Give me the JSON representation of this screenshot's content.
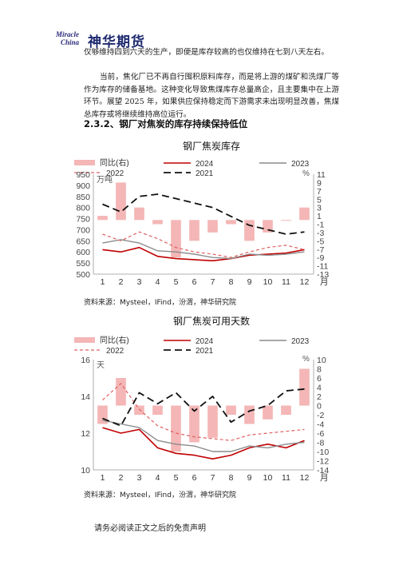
{
  "header": {
    "logo_line1": "Miracle",
    "logo_line2": "China",
    "company": "神华期货"
  },
  "body": {
    "para1": "仅够维持四到六天的生产，即便是库存较高的也仅维持在七到八天左右。",
    "para2": "当前，焦化厂已不再自行囤积原料库存，而是将上游的煤矿和洗煤厂等作为库存的储备基地。这种变化导致焦煤库存总量高企，且主要集中在上游环节。展望 2025 年，如果供应保持稳定而下游需求未出现明显改善，焦煤总库存或将继续维持高位运行。",
    "section_heading": "2.3.2、钢厂对焦炭的库存持续保持低位"
  },
  "charts": [
    {
      "title": "钢厂焦炭库存",
      "source": "资料来源：Mysteel，IFind，汾渭，神华研究院"
    },
    {
      "title": "钢厂焦炭可用天数",
      "source": "资料来源：Mysteel，IFind，汾渭，神华研究院"
    }
  ],
  "footer": {
    "disclaimer": "请务必阅读正文之后的免责声明"
  },
  "colors": {
    "bar": "#f4b6b6",
    "s2024": "#c00000",
    "s2023": "#8c8c8c",
    "s2022": "#e06060",
    "s2021": "#111111"
  },
  "chart_data": [
    {
      "type": "line",
      "title": "钢厂焦炭库存",
      "left_unit": "万吨",
      "right_unit": "%",
      "month_suffix": "月",
      "x": [
        1,
        2,
        3,
        4,
        5,
        6,
        7,
        8,
        9,
        10,
        11,
        12
      ],
      "x_ticks": [
        "1",
        "2",
        "3",
        "4",
        "5",
        "6",
        "7",
        "8",
        "9",
        "10",
        "11",
        "12"
      ],
      "ylim_left": [
        500,
        950
      ],
      "yticks_left": [
        "950",
        "900",
        "850",
        "800",
        "750",
        "700",
        "650",
        "600",
        "550",
        "500"
      ],
      "ylim_right": [
        -13,
        11
      ],
      "yticks_right": [
        "11",
        "9",
        "7",
        "5",
        "3",
        "1",
        "-1",
        "-3",
        "-5",
        "-7",
        "-9",
        "-11",
        "-13"
      ],
      "series": [
        {
          "name": "2024",
          "axis": "left",
          "style": "solid",
          "values": [
            610,
            600,
            620,
            580,
            570,
            565,
            560,
            570,
            585,
            590,
            595,
            610
          ]
        },
        {
          "name": "2023",
          "axis": "left",
          "style": "solid",
          "values": [
            640,
            655,
            640,
            605,
            600,
            590,
            575,
            570,
            590,
            585,
            590,
            600
          ]
        },
        {
          "name": "2022",
          "axis": "left",
          "style": "dashed",
          "values": [
            680,
            650,
            690,
            660,
            620,
            600,
            590,
            575,
            600,
            620,
            630,
            610
          ]
        },
        {
          "name": "2021",
          "axis": "left",
          "style": "longdash",
          "values": [
            815,
            780,
            850,
            860,
            840,
            820,
            800,
            760,
            720,
            700,
            680,
            690
          ]
        }
      ],
      "bar_series": {
        "name": "同比(右)",
        "axis": "right",
        "values": [
          1,
          9,
          3,
          -1,
          -9,
          -5,
          -3,
          -1,
          -5,
          -3,
          0,
          3
        ]
      }
    },
    {
      "type": "line",
      "title": "钢厂焦炭可用天数",
      "left_unit": "天",
      "right_unit": "%",
      "month_suffix": "月",
      "x": [
        1,
        2,
        3,
        4,
        5,
        6,
        7,
        8,
        9,
        10,
        11,
        12
      ],
      "x_ticks": [
        "1",
        "2",
        "3",
        "4",
        "5",
        "6",
        "7",
        "8",
        "9",
        "10",
        "11",
        "12"
      ],
      "ylim_left": [
        10,
        16
      ],
      "yticks_left": [
        "16",
        "14",
        "12",
        "10"
      ],
      "ylim_right": [
        -14,
        10
      ],
      "yticks_right": [
        "10",
        "8",
        "6",
        "4",
        "2",
        "0",
        "-2",
        "-4",
        "-6",
        "-8",
        "-10",
        "-12",
        "-14"
      ],
      "series": [
        {
          "name": "2024",
          "axis": "left",
          "style": "solid",
          "values": [
            12.3,
            12.0,
            12.2,
            11.2,
            10.9,
            10.8,
            10.6,
            10.8,
            11.2,
            11.4,
            11.2,
            11.6
          ]
        },
        {
          "name": "2023",
          "axis": "left",
          "style": "solid",
          "values": [
            12.7,
            12.5,
            12.3,
            11.6,
            11.4,
            11.3,
            11.0,
            11.0,
            11.3,
            11.2,
            11.4,
            11.5
          ]
        },
        {
          "name": "2022",
          "axis": "left",
          "style": "dashed",
          "values": [
            13.8,
            14.7,
            13.3,
            12.4,
            12.0,
            11.8,
            11.7,
            11.6,
            11.9,
            12.0,
            12.1,
            12.2
          ]
        },
        {
          "name": "2021",
          "axis": "left",
          "style": "longdash",
          "values": [
            12.8,
            12.4,
            14.2,
            13.6,
            14.2,
            13.2,
            14.0,
            12.6,
            13.2,
            13.5,
            14.3,
            14.4
          ]
        }
      ],
      "bar_series": {
        "name": "同比(右)",
        "axis": "right",
        "values": [
          -4,
          6,
          -2,
          -2,
          -10,
          -8,
          -7,
          -2,
          -4,
          -3,
          -2,
          8
        ]
      }
    }
  ]
}
